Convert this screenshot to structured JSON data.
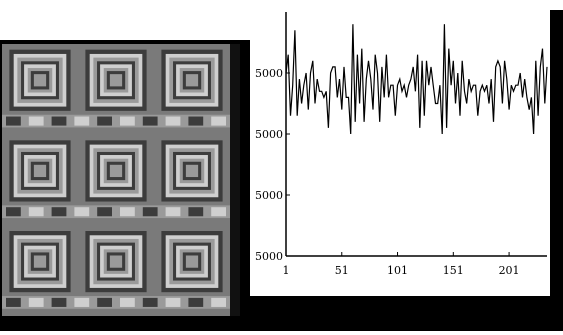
{
  "texture": {
    "description_icon": "square-tile-pattern",
    "rows": 3,
    "cols": 3,
    "colors": {
      "outer": "#7a7a7a",
      "light": "#cfcfcf",
      "mid": "#9a9a9a",
      "dark": "#3c3c3c",
      "frame": "#000000"
    }
  },
  "chart_data": {
    "type": "line",
    "title": "",
    "xlabel": "",
    "ylabel": "",
    "x_ticks": [
      "1",
      "51",
      "101",
      "151",
      "201"
    ],
    "y_ticks": [
      "5000",
      "5000",
      "5000",
      "5000"
    ],
    "xlim": [
      1,
      235
    ],
    "ylim": [
      0,
      4
    ],
    "grid": false,
    "series": [
      {
        "color": "#000000",
        "x": [
          1,
          3,
          5,
          7,
          9,
          11,
          13,
          15,
          17,
          19,
          21,
          23,
          25,
          27,
          29,
          31,
          33,
          35,
          37,
          39,
          41,
          43,
          45,
          47,
          49,
          51,
          53,
          55,
          57,
          59,
          61,
          63,
          65,
          67,
          69,
          71,
          73,
          75,
          77,
          79,
          81,
          83,
          85,
          87,
          89,
          91,
          93,
          95,
          97,
          99,
          101,
          103,
          105,
          107,
          109,
          111,
          113,
          115,
          117,
          119,
          121,
          123,
          125,
          127,
          129,
          131,
          133,
          135,
          137,
          139,
          141,
          143,
          145,
          147,
          149,
          151,
          153,
          155,
          157,
          159,
          161,
          163,
          165,
          167,
          169,
          171,
          173,
          175,
          177,
          179,
          181,
          183,
          185,
          187,
          189,
          191,
          193,
          195,
          197,
          199,
          201,
          203,
          205,
          207,
          209,
          211,
          213,
          215,
          217,
          219,
          221,
          223,
          225,
          227,
          229,
          231,
          233,
          235
        ],
        "values": [
          3.0,
          3.3,
          2.3,
          2.8,
          3.7,
          2.3,
          2.9,
          2.5,
          2.8,
          3.0,
          2.4,
          3.0,
          3.2,
          2.5,
          2.9,
          2.7,
          2.7,
          2.6,
          2.7,
          2.1,
          3.0,
          3.1,
          3.1,
          2.6,
          2.9,
          2.4,
          3.1,
          2.6,
          2.6,
          2.0,
          3.8,
          2.2,
          3.3,
          2.5,
          3.4,
          2.2,
          2.9,
          3.2,
          2.9,
          2.4,
          3.3,
          3.0,
          2.2,
          3.1,
          2.6,
          3.3,
          2.6,
          2.8,
          2.8,
          2.3,
          2.8,
          2.9,
          2.7,
          2.8,
          2.6,
          2.8,
          2.9,
          3.1,
          2.7,
          3.3,
          2.1,
          3.2,
          2.3,
          3.2,
          2.8,
          3.1,
          2.8,
          2.5,
          2.5,
          2.8,
          2.0,
          3.8,
          2.1,
          3.4,
          2.8,
          3.2,
          2.5,
          3.0,
          2.3,
          3.2,
          2.7,
          2.5,
          2.9,
          2.7,
          2.8,
          2.8,
          2.3,
          2.7,
          2.8,
          2.7,
          2.8,
          2.5,
          2.9,
          2.2,
          3.1,
          3.2,
          3.1,
          2.5,
          3.2,
          2.9,
          2.4,
          2.8,
          2.7,
          2.8,
          2.8,
          3.0,
          2.6,
          2.9,
          2.6,
          2.4,
          2.6,
          2.0,
          3.2,
          2.3,
          3.1,
          3.4,
          2.5,
          3.1
        ]
      }
    ]
  }
}
